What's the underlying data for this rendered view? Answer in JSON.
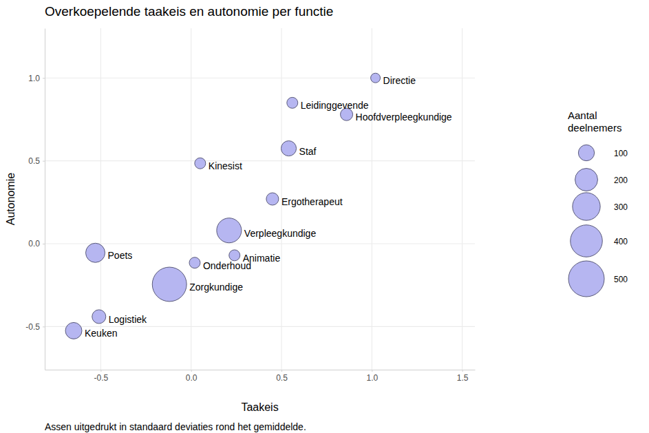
{
  "chart_data": {
    "type": "scatter",
    "title": "Overkoepelende taakeis en autonomie per functie",
    "caption": "Assen uitgedrukt in standaard deviaties rond het gemiddelde.",
    "x_label": "Taakeis",
    "y_label": "Autonomie",
    "xlim": [
      -0.81,
      1.57
    ],
    "ylim": [
      -0.76,
      1.3
    ],
    "xticks": [
      -0.5,
      {
        "value": 0,
        "label": "0.0"
      },
      0.5,
      {
        "value": 1,
        "label": "1.0"
      },
      1.5
    ],
    "yticks": [
      -0.5,
      {
        "value": 0,
        "label": "0.0"
      },
      0.5,
      {
        "value": 1,
        "label": "1.0"
      }
    ],
    "grid": true,
    "color": "#a9a9ee",
    "labels": [
      "Directie",
      "Leidinggevende",
      "Hoofdverpleegkundige",
      "Staf",
      "Kinesist",
      "Ergotherapeut",
      "Verpleegkundige",
      "Poets",
      "Onderhoud",
      "Animatie",
      "Zorgkundige",
      "Logistiek",
      "Keuken"
    ],
    "x": [
      1.02,
      0.56,
      0.86,
      0.54,
      0.05,
      0.45,
      0.21,
      -0.53,
      0.02,
      0.24,
      -0.12,
      -0.51,
      -0.65
    ],
    "values": [
      1.0,
      0.85,
      0.78,
      0.575,
      0.485,
      0.27,
      0.08,
      -0.055,
      -0.115,
      -0.07,
      -0.245,
      -0.44,
      -0.525
    ],
    "sizes": [
      36,
      47,
      60,
      90,
      47,
      60,
      240,
      145,
      47,
      47,
      460,
      74,
      106
    ],
    "size_legend": {
      "title": "Aantal deelnemers",
      "values": [
        100,
        200,
        300,
        400,
        500
      ]
    }
  }
}
